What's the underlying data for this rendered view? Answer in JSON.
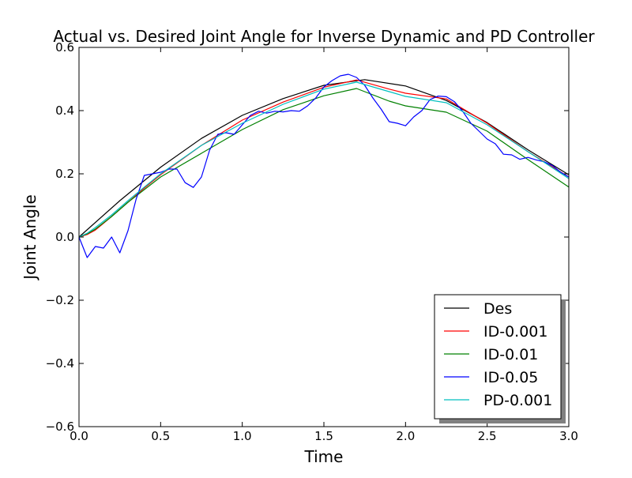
{
  "chart_data": {
    "type": "line",
    "title": "Actual vs. Desired Joint Angle for Inverse Dynamic and PD Controller",
    "xlabel": "Time",
    "ylabel": "Joint Angle",
    "xlim": [
      0.0,
      3.0
    ],
    "ylim": [
      -0.6,
      0.6
    ],
    "xticks": [
      "0.0",
      "0.5",
      "1.0",
      "1.5",
      "2.0",
      "2.5",
      "3.0"
    ],
    "yticks": [
      "−0.6",
      "−0.4",
      "−0.2",
      "0.0",
      "0.2",
      "0.4",
      "0.6"
    ],
    "grid": false,
    "legend_position": "lower-right",
    "series": [
      {
        "name": "Des",
        "color": "#000000",
        "x": [
          0.0,
          0.25,
          0.5,
          0.75,
          1.0,
          1.25,
          1.5,
          1.75,
          2.0,
          2.25,
          2.5,
          2.75,
          3.0
        ],
        "y": [
          0.0,
          0.115,
          0.221,
          0.312,
          0.385,
          0.438,
          0.48,
          0.498,
          0.478,
          0.432,
          0.362,
          0.276,
          0.197
        ]
      },
      {
        "name": "ID-0.001",
        "color": "#ff0000",
        "x": [
          0.0,
          0.05,
          0.1,
          0.2,
          0.3,
          0.4,
          0.5,
          0.75,
          1.0,
          1.25,
          1.5,
          1.7,
          1.9,
          2.0,
          2.25,
          2.5,
          2.75,
          3.0
        ],
        "y": [
          0.0,
          0.008,
          0.022,
          0.065,
          0.11,
          0.155,
          0.197,
          0.29,
          0.37,
          0.427,
          0.474,
          0.497,
          0.468,
          0.455,
          0.437,
          0.36,
          0.27,
          0.19
        ]
      },
      {
        "name": "ID-0.01",
        "color": "#008000",
        "x": [
          0.0,
          0.05,
          0.1,
          0.2,
          0.3,
          0.4,
          0.5,
          0.75,
          1.0,
          1.25,
          1.5,
          1.7,
          1.9,
          2.0,
          2.25,
          2.5,
          2.75,
          3.0
        ],
        "y": [
          0.0,
          0.01,
          0.025,
          0.065,
          0.11,
          0.15,
          0.19,
          0.265,
          0.34,
          0.403,
          0.447,
          0.47,
          0.43,
          0.415,
          0.395,
          0.335,
          0.245,
          0.158
        ]
      },
      {
        "name": "ID-0.05",
        "color": "#0000ff",
        "x": [
          0.0,
          0.05,
          0.1,
          0.15,
          0.2,
          0.25,
          0.3,
          0.35,
          0.4,
          0.45,
          0.5,
          0.55,
          0.6,
          0.65,
          0.7,
          0.75,
          0.8,
          0.85,
          0.9,
          0.95,
          1.0,
          1.05,
          1.1,
          1.15,
          1.2,
          1.25,
          1.3,
          1.35,
          1.4,
          1.45,
          1.5,
          1.55,
          1.6,
          1.65,
          1.7,
          1.75,
          1.8,
          1.85,
          1.9,
          1.95,
          2.0,
          2.05,
          2.1,
          2.15,
          2.2,
          2.25,
          2.3,
          2.35,
          2.4,
          2.45,
          2.5,
          2.55,
          2.6,
          2.65,
          2.7,
          2.75,
          2.8,
          2.85,
          2.9,
          2.95,
          3.0
        ],
        "y": [
          0.0,
          -0.065,
          -0.03,
          -0.035,
          0.0,
          -0.05,
          0.02,
          0.12,
          0.195,
          0.2,
          0.205,
          0.215,
          0.215,
          0.172,
          0.157,
          0.19,
          0.275,
          0.325,
          0.33,
          0.325,
          0.355,
          0.385,
          0.398,
          0.392,
          0.398,
          0.396,
          0.4,
          0.398,
          0.415,
          0.44,
          0.475,
          0.495,
          0.51,
          0.515,
          0.505,
          0.48,
          0.44,
          0.405,
          0.365,
          0.36,
          0.352,
          0.38,
          0.4,
          0.435,
          0.446,
          0.444,
          0.428,
          0.398,
          0.36,
          0.335,
          0.31,
          0.295,
          0.262,
          0.26,
          0.246,
          0.252,
          0.244,
          0.238,
          0.226,
          0.205,
          0.19
        ]
      },
      {
        "name": "PD-0.001",
        "color": "#00bfbf",
        "x": [
          0.0,
          0.05,
          0.1,
          0.2,
          0.3,
          0.4,
          0.5,
          0.75,
          1.0,
          1.25,
          1.5,
          1.7,
          1.9,
          2.0,
          2.25,
          2.5,
          2.75,
          3.0
        ],
        "y": [
          0.0,
          0.012,
          0.03,
          0.07,
          0.115,
          0.158,
          0.2,
          0.29,
          0.36,
          0.42,
          0.468,
          0.49,
          0.46,
          0.445,
          0.425,
          0.355,
          0.27,
          0.185
        ]
      }
    ]
  }
}
